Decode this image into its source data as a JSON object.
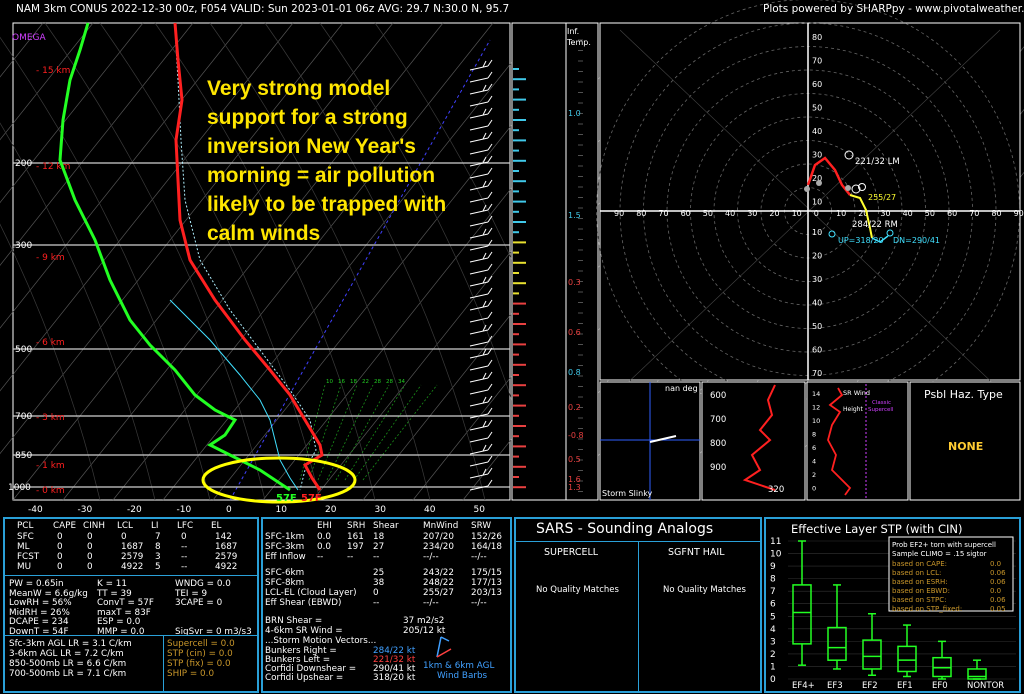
{
  "header": {
    "left": "NAM 3km CONUS 2022-12-30 00z, F054   VALID: Sun 2023-01-01 06z   AVG: 29.7 N:30.0 N, 95.7",
    "right": "Plots powered by SHARPpy - www.pivotalweather.com"
  },
  "annotation": [
    "Very strong model",
    "support for a strong",
    "inversion New Year's",
    "morning = air pollution",
    "likely to be trapped with",
    "calm winds"
  ],
  "skewt": {
    "omega_label": "OMEGA",
    "pressure_ticks": [
      "200",
      "300",
      "500",
      "700",
      "850",
      "1000"
    ],
    "height_labels": [
      "15 km",
      "12 km",
      "9 km",
      "6 km",
      "3 km",
      "1 km",
      "0 km"
    ],
    "temp_ticks": [
      "-40",
      "-30",
      "-20",
      "-10",
      "0",
      "10",
      "20",
      "30",
      "40",
      "50"
    ],
    "surface_dewpoint": "57F",
    "surface_temp": "57F",
    "mixing_ratio_labels": [
      "10",
      "16",
      "18",
      "22",
      "28",
      "28",
      "34"
    ]
  },
  "inferred_temp": {
    "title": "Inf. Temp.",
    "values": [
      "1.0",
      "1.5",
      "0.8",
      "0.3",
      "0.6",
      "0.2",
      "-0.8",
      "0.5",
      "1.6",
      "1.3"
    ]
  },
  "hodograph": {
    "axis_labels_x": [
      "90",
      "80",
      "70",
      "60",
      "50",
      "40",
      "30",
      "20",
      "10",
      "0",
      "10",
      "20",
      "30",
      "40",
      "50",
      "60",
      "70",
      "80",
      "90"
    ],
    "axis_labels_y": [
      "80",
      "70",
      "60",
      "50",
      "40",
      "30",
      "20",
      "10",
      "10",
      "20",
      "30",
      "40",
      "50",
      "60",
      "70",
      "80"
    ],
    "lm_label": "221/32 LM",
    "rm_label": "284/22 RM",
    "mean_label": "255/27",
    "up_label": "UP=318/20",
    "dn_label": "DN=290/41"
  },
  "storm_slinky": {
    "title": "nan deg",
    "label": "Storm Slinky"
  },
  "theta_e": {
    "ticks": [
      "600",
      "700",
      "800",
      "900"
    ],
    "value_label": "320"
  },
  "sr_wind": {
    "title": "SR Wind",
    "sub": "Height",
    "classic": "Classic Supercell",
    "ticks": [
      "14",
      "12",
      "10",
      "8",
      "6",
      "4",
      "2",
      "0"
    ]
  },
  "hazard": {
    "title": "Psbl Haz. Type",
    "value": "NONE"
  },
  "parcels": {
    "header": [
      "PCL",
      "CAPE",
      "CINH",
      "LCL",
      "LI",
      "LFC",
      "EL"
    ],
    "rows": [
      [
        "SFC",
        "0",
        "0",
        "0",
        "7",
        "0",
        "142"
      ],
      [
        "ML",
        "0",
        "0",
        "1687",
        "8",
        "--",
        "1687"
      ],
      [
        "FCST",
        "0",
        "0",
        "2579",
        "3",
        "--",
        "2579"
      ],
      [
        "MU",
        "0",
        "0",
        "4922",
        "5",
        "--",
        "4922"
      ]
    ]
  },
  "indices": {
    "col1": [
      "PW = 0.65in",
      "MeanW = 6.6g/kg",
      "LowRH = 56%",
      "MidRH = 26%",
      "DCAPE = 234",
      "DownT = 54F"
    ],
    "col2": [
      "K = 11",
      "TT = 39",
      "ConvT = 57F",
      "maxT = 83F",
      "ESP = 0.0",
      "MMP = 0.0"
    ],
    "col3": [
      "WNDG = 0.0",
      "TEI = 9",
      "3CAPE = 0",
      "",
      "",
      "SigSvr = 0 m3/s3"
    ]
  },
  "lapse_rates": [
    "Sfc-3km AGL LR = 3.1 C/km",
    "3-6km AGL LR = 7.2 C/km",
    "850-500mb LR = 6.6 C/km",
    "700-500mb LR = 7.1 C/km"
  ],
  "composites": [
    "Supercell = 0.0",
    "STP (cin) = 0.0",
    "STP (fix) = 0.0",
    "SHIP = 0.0"
  ],
  "kinematics": {
    "header": [
      "EHI",
      "SRH",
      "Shear",
      "MnWind",
      "SRW"
    ],
    "rows": [
      [
        "SFC-1km",
        "0.0",
        "161",
        "18",
        "207/20",
        "152/26"
      ],
      [
        "SFC-3km",
        "0.0",
        "197",
        "27",
        "234/20",
        "164/18"
      ],
      [
        "Eff Inflow",
        "--",
        "--",
        "--",
        "--/--",
        "--/--"
      ],
      [
        "SFC-6km",
        "",
        "",
        "25",
        "243/22",
        "175/15"
      ],
      [
        "SFC-8km",
        "",
        "",
        "38",
        "248/22",
        "177/13"
      ],
      [
        "LCL-EL (Cloud Layer)",
        "",
        "",
        "0",
        "255/27",
        "203/13"
      ],
      [
        "Eff Shear (EBWD)",
        "",
        "",
        "--",
        "--/--",
        "--/--"
      ]
    ],
    "brn_label": "BRN Shear =",
    "brn_value": "37 m2/s2",
    "sr46_label": "4-6km SR Wind =",
    "sr46_value": "205/12 kt",
    "motion_title": "...Storm Motion Vectors...",
    "motions": [
      [
        "Bunkers Right =",
        "284/22 kt"
      ],
      [
        "Bunkers Left =",
        "221/32 kt"
      ],
      [
        "Corfidi Downshear =",
        "290/41 kt"
      ],
      [
        "Corfidi Upshear =",
        "318/20 kt"
      ]
    ],
    "barb_caption": [
      "1km & 6km AGL",
      "Wind Barbs"
    ]
  },
  "sars": {
    "title": "SARS - Sounding Analogs",
    "supercell": "SUPERCELL",
    "sgfnt_hail": "SGFNT HAIL",
    "match_left": "No Quality Matches",
    "match_right": "No Quality Matches"
  },
  "stp": {
    "title": "Effective Layer STP (with CIN)",
    "box_title": "Prob EF2+ torn with supercell",
    "box_sub": "Sample CLIMO = .15 sigtor",
    "rows": [
      [
        "based on CAPE:",
        "0.0"
      ],
      [
        "based on LCL:",
        "0.06"
      ],
      [
        "based on ESRH:",
        "0.06"
      ],
      [
        "based on EBWD:",
        "0.0"
      ],
      [
        "based on STPC:",
        "0.06"
      ],
      [
        "based on STP_fixed:",
        "0.05"
      ]
    ],
    "y_ticks": [
      "0",
      "1",
      "2",
      "3",
      "4",
      "5",
      "6",
      "7",
      "8",
      "9",
      "10",
      "11"
    ]
  },
  "chart_data": {
    "type": "box",
    "title": "Effective Layer STP (with CIN)",
    "categories": [
      "EF4+",
      "EF3",
      "EF2",
      "EF1",
      "EF0",
      "NONTOR"
    ],
    "series": [
      {
        "whisker_low": [
          1.1,
          0.8,
          0.3,
          0.2,
          0.0,
          0.0
        ],
        "q1": [
          2.8,
          1.5,
          0.8,
          0.6,
          0.2,
          0.0
        ],
        "median": [
          5.3,
          2.5,
          1.8,
          1.5,
          0.9,
          0.2
        ],
        "q3": [
          7.5,
          4.1,
          3.1,
          2.6,
          1.7,
          0.8
        ],
        "whisker_high": [
          11.0,
          7.5,
          5.2,
          4.3,
          3.0,
          1.5
        ]
      }
    ],
    "ylim": [
      0,
      11
    ]
  },
  "colors": {
    "temp": "#ff2020",
    "dewpoint": "#22ff22",
    "virtual": "#40e0ff",
    "wetbulb": "#40e0ff",
    "annotation": "#ffe600",
    "panel_border": "#2aa0d8",
    "highlight": "#ffff00",
    "pressure_lines": "#d0d0d0"
  }
}
